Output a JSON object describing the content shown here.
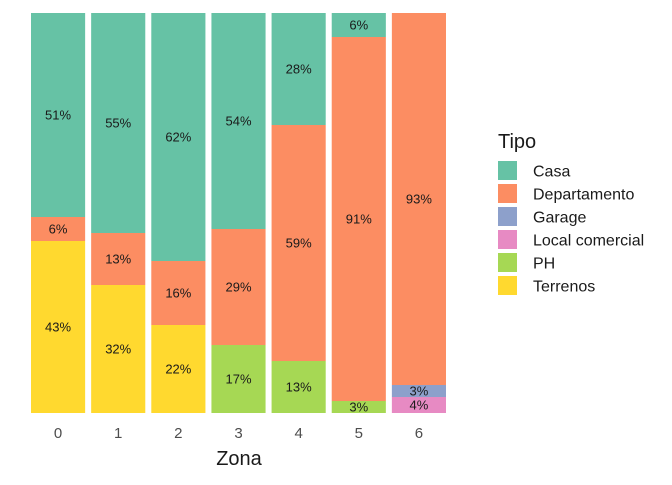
{
  "chart_data": {
    "type": "bar",
    "stacked": true,
    "normalized": true,
    "xlabel": "Zona",
    "ylabel": "",
    "ylim": [
      0,
      1
    ],
    "grid": true,
    "legend_position": "right",
    "categories": [
      "0",
      "1",
      "2",
      "3",
      "4",
      "5",
      "6"
    ],
    "legend": {
      "title": "Tipo",
      "entries": [
        {
          "name": "Casa",
          "color": "#66c2a5"
        },
        {
          "name": "Departamento",
          "color": "#fc8d62"
        },
        {
          "name": "Garage",
          "color": "#8da0cb"
        },
        {
          "name": "Local comercial",
          "color": "#e78ac3"
        },
        {
          "name": "PH",
          "color": "#a6d854"
        },
        {
          "name": "Terrenos",
          "color": "#ffd92f"
        }
      ]
    },
    "series": [
      {
        "name": "Casa",
        "color": "#66c2a5",
        "values": [
          0.51,
          0.55,
          0.62,
          0.54,
          0.28,
          0.06,
          0
        ],
        "labels": [
          "51%",
          "55%",
          "62%",
          "54%",
          "28%",
          "6%",
          ""
        ]
      },
      {
        "name": "Departamento",
        "color": "#fc8d62",
        "values": [
          0.06,
          0.13,
          0.16,
          0.29,
          0.59,
          0.91,
          0.93
        ],
        "labels": [
          "6%",
          "13%",
          "16%",
          "29%",
          "59%",
          "91%",
          "93%"
        ]
      },
      {
        "name": "Garage",
        "color": "#8da0cb",
        "values": [
          0,
          0,
          0,
          0,
          0,
          0,
          0.03
        ],
        "labels": [
          "",
          "",
          "",
          "",
          "",
          "",
          "3%"
        ]
      },
      {
        "name": "Local comercial",
        "color": "#e78ac3",
        "values": [
          0,
          0,
          0,
          0,
          0,
          0,
          0.04
        ],
        "labels": [
          "",
          "",
          "",
          "",
          "",
          "",
          "4%"
        ]
      },
      {
        "name": "PH",
        "color": "#a6d854",
        "values": [
          0,
          0,
          0,
          0.17,
          0.13,
          0.03,
          0
        ],
        "labels": [
          "",
          "",
          "",
          "17%",
          "13%",
          "3%",
          ""
        ]
      },
      {
        "name": "Terrenos",
        "color": "#ffd92f",
        "values": [
          0.43,
          0.32,
          0.22,
          0,
          0,
          0,
          0
        ],
        "labels": [
          "43%",
          "32%",
          "22%",
          "",
          "",
          "",
          ""
        ]
      }
    ]
  }
}
